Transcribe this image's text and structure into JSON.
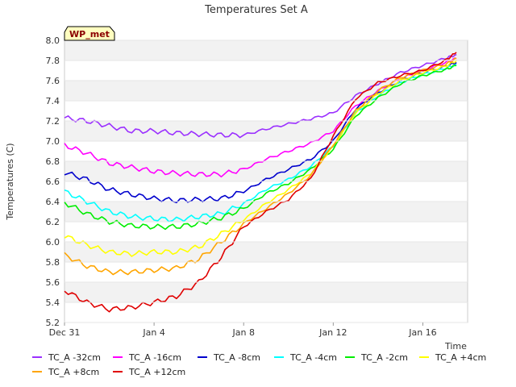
{
  "chart_data": {
    "type": "line",
    "title": "Temperatures Set A",
    "xlabel": "Time",
    "ylabel": "Temperatures (C)",
    "badge": "WP_met",
    "x_ticks": [
      "Dec 31",
      "Jan 4",
      "Jan 8",
      "Jan 12",
      "Jan 16"
    ],
    "y_ticks": [
      "5.2",
      "5.4",
      "5.6",
      "5.8",
      "6.0",
      "6.2",
      "6.4",
      "6.6",
      "6.8",
      "7.0",
      "7.2",
      "7.4",
      "7.6",
      "7.8",
      "8.0"
    ],
    "xlim": [
      "2023-12-31",
      "2024-01-18"
    ],
    "ylim": [
      5.2,
      8.0
    ],
    "grid": "horizontal alternating bands",
    "legend_position": "bottom",
    "x": [
      "2023-12-31",
      "2024-01-01",
      "2024-01-02",
      "2024-01-03",
      "2024-01-04",
      "2024-01-05",
      "2024-01-06",
      "2024-01-07",
      "2024-01-08",
      "2024-01-09",
      "2024-01-10",
      "2024-01-11",
      "2024-01-12",
      "2024-01-13",
      "2024-01-14",
      "2024-01-15",
      "2024-01-16",
      "2024-01-17",
      "2024-01-17T12:00"
    ],
    "series": [
      {
        "name": "TC_A -32cm",
        "color": "#9b30ff",
        "values": [
          7.23,
          7.2,
          7.15,
          7.1,
          7.1,
          7.08,
          7.07,
          7.06,
          7.06,
          7.12,
          7.17,
          7.22,
          7.28,
          7.45,
          7.57,
          7.68,
          7.75,
          7.82,
          7.86
        ]
      },
      {
        "name": "TC_A -16cm",
        "color": "#ff00ff",
        "values": [
          6.96,
          6.88,
          6.78,
          6.74,
          6.7,
          6.68,
          6.67,
          6.67,
          6.72,
          6.82,
          6.9,
          6.98,
          7.1,
          7.35,
          7.5,
          7.62,
          7.7,
          7.78,
          7.82
        ]
      },
      {
        "name": "TC_A -8cm",
        "color": "#0000cd",
        "values": [
          6.69,
          6.62,
          6.52,
          6.47,
          6.43,
          6.41,
          6.42,
          6.43,
          6.5,
          6.62,
          6.72,
          6.82,
          7.0,
          7.32,
          7.48,
          7.6,
          7.68,
          7.74,
          7.78
        ]
      },
      {
        "name": "TC_A -4cm",
        "color": "#00ffff",
        "values": [
          6.5,
          6.4,
          6.3,
          6.25,
          6.23,
          6.22,
          6.25,
          6.28,
          6.38,
          6.52,
          6.62,
          6.75,
          6.95,
          7.28,
          7.45,
          7.58,
          7.66,
          7.72,
          7.76
        ]
      },
      {
        "name": "TC_A -2cm",
        "color": "#00ee00",
        "values": [
          6.39,
          6.28,
          6.2,
          6.16,
          6.15,
          6.15,
          6.18,
          6.24,
          6.33,
          6.48,
          6.58,
          6.72,
          6.92,
          7.25,
          7.43,
          7.57,
          7.65,
          7.71,
          7.75
        ]
      },
      {
        "name": "TC_A +4cm",
        "color": "#ffff00",
        "values": [
          6.06,
          5.97,
          5.9,
          5.88,
          5.9,
          5.9,
          5.95,
          6.08,
          6.22,
          6.38,
          6.52,
          6.68,
          6.95,
          7.28,
          7.47,
          7.6,
          7.68,
          7.74,
          7.8
        ]
      },
      {
        "name": "TC_A +8cm",
        "color": "#ffa500",
        "values": [
          5.87,
          5.76,
          5.7,
          5.7,
          5.72,
          5.74,
          5.83,
          6.0,
          6.18,
          6.33,
          6.48,
          6.66,
          6.96,
          7.3,
          7.5,
          7.63,
          7.7,
          7.76,
          7.82
        ]
      },
      {
        "name": "TC_A +12cm",
        "color": "#e00000",
        "values": [
          5.52,
          5.4,
          5.33,
          5.35,
          5.4,
          5.46,
          5.6,
          5.85,
          6.15,
          6.3,
          6.42,
          6.63,
          7.05,
          7.42,
          7.58,
          7.65,
          7.7,
          7.8,
          7.88
        ]
      }
    ]
  }
}
